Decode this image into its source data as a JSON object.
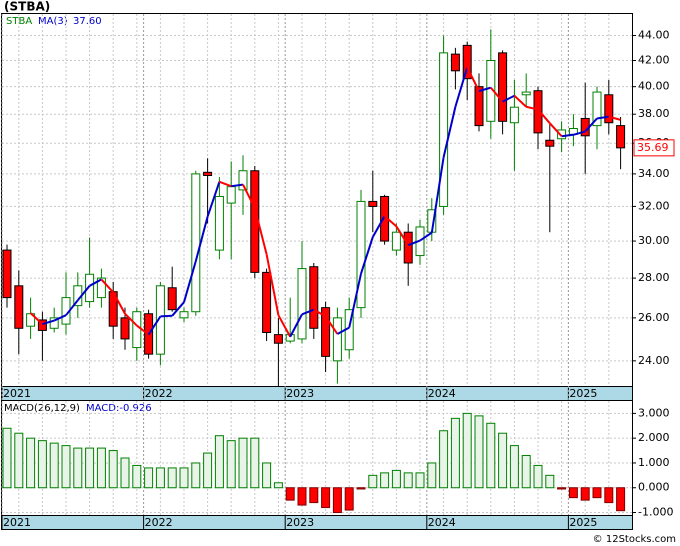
{
  "chart_data": {
    "type": "candlestick",
    "title": "(STBA)",
    "legend": {
      "symbol": "STBA",
      "ma_name": "MA(3)",
      "ma_value": "37.60"
    },
    "last_price_label": "35.69",
    "footer": "© 12Stocks.com",
    "log_scale": true,
    "grid": true,
    "colors": {
      "up": "#008000",
      "down": "#ff0000",
      "ma_up": "#0000cc",
      "ma_down": "#ff0000",
      "axis_band": "#add8e6"
    },
    "xticks": [
      {
        "value": 0,
        "label": "2021"
      },
      {
        "value": 12,
        "label": "2022"
      },
      {
        "value": 24,
        "label": "2023"
      },
      {
        "value": 36,
        "label": "2024"
      },
      {
        "value": 48,
        "label": "2025"
      }
    ],
    "ylim": [
      22.9,
      45.8
    ],
    "yticks": [
      {
        "value": 24,
        "label": "24.00"
      },
      {
        "value": 26,
        "label": "26.00"
      },
      {
        "value": 28,
        "label": "28.00"
      },
      {
        "value": 30,
        "label": "30.00"
      },
      {
        "value": 32,
        "label": "32.00"
      },
      {
        "value": 34,
        "label": "34.00"
      },
      {
        "value": 36,
        "label": "36.00"
      },
      {
        "value": 38,
        "label": "38.00"
      },
      {
        "value": 40,
        "label": "40.00"
      },
      {
        "value": 42,
        "label": "42.00"
      },
      {
        "value": 44,
        "label": "44.00"
      }
    ],
    "open": [
      29.5,
      27.6,
      25.6,
      25.9,
      25.5,
      25.7,
      26.6,
      26.8,
      27,
      27.3,
      26,
      24.6,
      26.2,
      24.3,
      27.5,
      26,
      26.3,
      34.1,
      29.5,
      32.2,
      33,
      34.2,
      28.3,
      25.2,
      24.9,
      25,
      28.6,
      26.5,
      24,
      24.5,
      26.5,
      32.3,
      32.6,
      29.5,
      30.5,
      29.2,
      30.5,
      32,
      42.5,
      43.2,
      40,
      37.5,
      42.6,
      37.4,
      39.4,
      39.7,
      36.2,
      36.3,
      36.6,
      37.7,
      37.2,
      39.4,
      37.2
    ],
    "high": [
      29.8,
      28.4,
      27,
      26.3,
      26.5,
      28.3,
      28.3,
      30.2,
      28.5,
      27.8,
      26.5,
      26.5,
      26.4,
      27.8,
      28.6,
      26.5,
      34.2,
      35,
      33.8,
      34.8,
      35.2,
      34.5,
      28.5,
      26,
      27,
      30,
      28.8,
      26.8,
      26.5,
      27,
      33,
      34.2,
      32.7,
      31,
      31,
      31.2,
      32.5,
      44,
      43,
      43.5,
      41,
      44.5,
      42.8,
      40.5,
      41,
      40,
      37.3,
      37.5,
      38,
      40.3,
      40,
      40.5,
      37.8
    ],
    "low": [
      26.5,
      24.3,
      25,
      24,
      25.3,
      25.2,
      26,
      26.5,
      26.5,
      25,
      24.5,
      24,
      24.1,
      23.8,
      26.3,
      25.8,
      26.1,
      31,
      29,
      29,
      31.5,
      28,
      24.9,
      22.9,
      24.8,
      24.8,
      25,
      23.5,
      23,
      24.1,
      26,
      30.5,
      29.8,
      29.2,
      27.6,
      28.7,
      30,
      31.5,
      39.8,
      39,
      36.8,
      36.3,
      36.6,
      34.2,
      38.5,
      35.6,
      30.5,
      35.4,
      35.8,
      34,
      35.6,
      36.6,
      34.3
    ],
    "close": [
      27,
      25.5,
      26.2,
      25.4,
      26,
      27,
      27.6,
      28.2,
      28,
      25.6,
      25,
      26.3,
      24.3,
      27.6,
      26.4,
      26.3,
      34,
      33.9,
      32.6,
      33.2,
      34.2,
      28.3,
      25.3,
      24.8,
      25.2,
      28.5,
      25.5,
      24.2,
      26,
      26.4,
      32.3,
      32,
      30,
      30.5,
      28.8,
      30.8,
      31.8,
      42.6,
      41.2,
      40.6,
      37.2,
      42,
      37.5,
      38.5,
      39.6,
      36.7,
      35.8,
      36.9,
      37,
      36.5,
      39.6,
      37.4,
      35.69
    ],
    "ma": [
      null,
      null,
      26.23,
      25.7,
      25.87,
      26.13,
      26.87,
      27.6,
      27.93,
      27.27,
      26.2,
      25.63,
      25.2,
      26.07,
      26.1,
      26.77,
      28.9,
      31.4,
      33.5,
      33.23,
      33.33,
      31.9,
      29.27,
      26.13,
      25.1,
      26.17,
      26.4,
      26.07,
      25.23,
      25.53,
      28.23,
      30.23,
      31.43,
      30.83,
      29.77,
      30.03,
      30.47,
      35.07,
      38.53,
      41.47,
      39.67,
      39.93,
      38.9,
      39.33,
      38.53,
      38.33,
      37.37,
      36.47,
      36.57,
      36.8,
      37.7,
      37.83,
      37.6
    ],
    "macd": {
      "name": "MACD(26,12,9)",
      "value_text": "MACD:-0.926",
      "ylim": [
        -1.1,
        3.5
      ],
      "yticks": [
        {
          "value": 3,
          "label": "3.000"
        },
        {
          "value": 2,
          "label": "2.000"
        },
        {
          "value": 1,
          "label": "1.000"
        },
        {
          "value": 0,
          "label": "0.000"
        },
        {
          "value": -1,
          "label": "-1.000"
        }
      ],
      "values": [
        2.4,
        2.2,
        2.0,
        1.9,
        1.8,
        1.7,
        1.6,
        1.6,
        1.6,
        1.5,
        1.2,
        0.9,
        0.8,
        0.8,
        0.8,
        0.8,
        1.0,
        1.4,
        2.1,
        1.9,
        2.0,
        2.0,
        1.0,
        0.2,
        -0.5,
        -0.7,
        -0.6,
        -0.8,
        -1.0,
        -0.9,
        -0.05,
        0.5,
        0.6,
        0.7,
        0.6,
        0.6,
        1.0,
        2.3,
        2.8,
        3.0,
        2.9,
        2.6,
        2.2,
        1.7,
        1.3,
        0.9,
        0.5,
        -0.05,
        -0.4,
        -0.5,
        -0.4,
        -0.6,
        -0.926
      ]
    }
  }
}
